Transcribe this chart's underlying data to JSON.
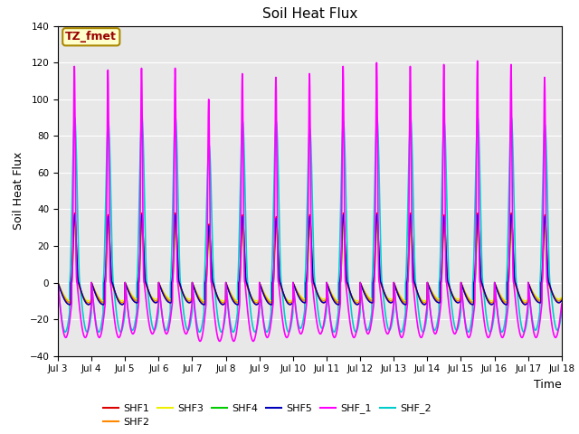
{
  "title": "Soil Heat Flux",
  "ylabel": "Soil Heat Flux",
  "xlabel": "Time",
  "ylim": [
    -40,
    140
  ],
  "yticks": [
    -40,
    -20,
    0,
    20,
    40,
    60,
    80,
    100,
    120,
    140
  ],
  "xtick_labels": [
    "Jul 3",
    "Jul 4",
    "Jul 5",
    "Jul 6",
    "Jul 7",
    "Jul 8",
    "Jul 9",
    "Jul 10",
    "Jul 11",
    "Jul 12",
    "Jul 13",
    "Jul 14",
    "Jul 15",
    "Jul 16",
    "Jul 17",
    "Jul 18"
  ],
  "series": {
    "SHF1": {
      "color": "#dd0000",
      "lw": 1.0
    },
    "SHF2": {
      "color": "#ff8800",
      "lw": 1.0
    },
    "SHF3": {
      "color": "#eeee00",
      "lw": 1.0
    },
    "SHF4": {
      "color": "#00cc00",
      "lw": 1.0
    },
    "SHF5": {
      "color": "#0000bb",
      "lw": 1.0
    },
    "SHF_1": {
      "color": "#ff00ff",
      "lw": 1.2
    },
    "SHF_2": {
      "color": "#00cccc",
      "lw": 1.2
    }
  },
  "annotation_text": "TZ_fmet",
  "annotation_bg": "#ffffcc",
  "annotation_border": "#aa8800",
  "n_days": 15,
  "ppd": 288,
  "background_color": "#e8e8e8",
  "fig_bg": "#ffffff",
  "shf1_peaks": [
    38,
    37,
    38,
    38,
    32,
    37,
    36,
    37,
    38,
    38,
    38,
    37,
    38,
    38,
    37
  ],
  "shf1_troughs": [
    12,
    12,
    11,
    11,
    12,
    12,
    12,
    11,
    12,
    11,
    12,
    11,
    12,
    12,
    11
  ],
  "shf2_peaks": [
    36,
    35,
    36,
    36,
    30,
    35,
    34,
    35,
    36,
    36,
    36,
    35,
    36,
    36,
    35
  ],
  "shf2_troughs": [
    11,
    11,
    10,
    10,
    11,
    11,
    11,
    10,
    11,
    10,
    11,
    10,
    11,
    11,
    10
  ],
  "shf3_peaks": [
    32,
    31,
    32,
    32,
    27,
    31,
    30,
    31,
    32,
    32,
    32,
    31,
    32,
    32,
    31
  ],
  "shf3_troughs": [
    10,
    10,
    9,
    9,
    10,
    10,
    10,
    9,
    10,
    9,
    10,
    9,
    10,
    10,
    9
  ],
  "shf4_peaks": [
    34,
    33,
    34,
    34,
    29,
    33,
    32,
    33,
    34,
    34,
    34,
    33,
    34,
    34,
    33
  ],
  "shf4_troughs": [
    11,
    11,
    10,
    10,
    11,
    11,
    11,
    10,
    11,
    10,
    11,
    10,
    11,
    11,
    10
  ],
  "shf5_peaks": [
    37,
    36,
    37,
    37,
    31,
    36,
    35,
    36,
    37,
    37,
    37,
    36,
    37,
    37,
    36
  ],
  "shf5_troughs": [
    12,
    12,
    11,
    11,
    12,
    12,
    12,
    11,
    12,
    11,
    12,
    11,
    12,
    12,
    11
  ],
  "shfL_peaks": [
    118,
    116,
    117,
    117,
    100,
    114,
    112,
    114,
    118,
    120,
    118,
    119,
    121,
    119,
    112
  ],
  "shfL_troughs": [
    30,
    30,
    28,
    28,
    32,
    32,
    30,
    28,
    30,
    28,
    30,
    28,
    30,
    30,
    30
  ],
  "shfC_peaks": [
    90,
    88,
    91,
    90,
    75,
    88,
    88,
    84,
    88,
    90,
    90,
    88,
    90,
    90,
    86
  ],
  "shfC_troughs": [
    27,
    27,
    26,
    26,
    27,
    27,
    27,
    25,
    27,
    26,
    27,
    26,
    27,
    27,
    26
  ]
}
